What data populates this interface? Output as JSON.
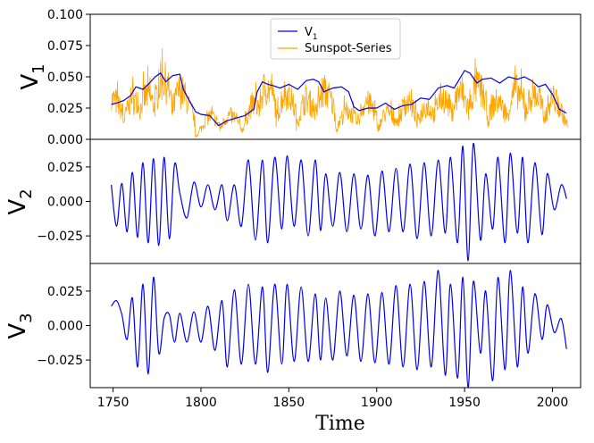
{
  "figure": {
    "xlabel": "Time",
    "x_ticks": [
      1750,
      1800,
      1850,
      1900,
      1950,
      2000
    ]
  },
  "legend": {
    "v1_label": "V",
    "v1_sub": "1",
    "sunspot_label": "Sunspot-Series"
  },
  "colors": {
    "v_line": "#0000ee",
    "sunspot": "#ffa500"
  },
  "chart_data": [
    {
      "type": "line",
      "panel": "v1",
      "ylabel": "V",
      "ylabel_sub": "1",
      "xlim": [
        1737,
        2016
      ],
      "ylim": [
        0,
        0.1
      ],
      "y_ticks": [
        "0.000",
        "0.025",
        "0.050",
        "0.075",
        "0.100"
      ],
      "y_tick_values": [
        0,
        0.025,
        0.05,
        0.075,
        0.1
      ],
      "series": [
        {
          "name": "V1",
          "color": "#0000ee",
          "x": [
            1749,
            1752,
            1756,
            1760,
            1763,
            1767,
            1770,
            1774,
            1777,
            1780,
            1784,
            1788,
            1790,
            1793,
            1797,
            1800,
            1805,
            1810,
            1815,
            1820,
            1825,
            1830,
            1832,
            1835,
            1838,
            1841,
            1845,
            1850,
            1855,
            1860,
            1864,
            1867,
            1870,
            1875,
            1880,
            1884,
            1887,
            1890,
            1895,
            1900,
            1905,
            1910,
            1915,
            1920,
            1925,
            1930,
            1935,
            1940,
            1944,
            1947,
            1950,
            1953,
            1957,
            1960,
            1965,
            1970,
            1975,
            1980,
            1984,
            1988,
            1992,
            1996,
            2000,
            2004,
            2008
          ],
          "y": [
            0.028,
            0.029,
            0.031,
            0.035,
            0.042,
            0.04,
            0.044,
            0.05,
            0.053,
            0.046,
            0.051,
            0.052,
            0.04,
            0.032,
            0.022,
            0.02,
            0.019,
            0.011,
            0.015,
            0.017,
            0.019,
            0.024,
            0.038,
            0.046,
            0.044,
            0.043,
            0.041,
            0.044,
            0.04,
            0.047,
            0.048,
            0.046,
            0.038,
            0.041,
            0.042,
            0.038,
            0.026,
            0.023,
            0.025,
            0.025,
            0.029,
            0.024,
            0.027,
            0.028,
            0.033,
            0.032,
            0.041,
            0.043,
            0.041,
            0.048,
            0.055,
            0.053,
            0.045,
            0.048,
            0.049,
            0.045,
            0.05,
            0.048,
            0.05,
            0.047,
            0.042,
            0.044,
            0.036,
            0.024,
            0.021
          ]
        },
        {
          "name": "Sunspot-Series",
          "color": "#ffa500",
          "cycle_max_years": [
            1750,
            1761,
            1769,
            1778,
            1788,
            1805,
            1816,
            1830,
            1837,
            1848,
            1860,
            1870,
            1883,
            1894,
            1906,
            1917,
            1928,
            1937,
            1947,
            1957,
            1968,
            1979,
            1989,
            2000
          ],
          "cycle_peaks": [
            0.043,
            0.043,
            0.048,
            0.065,
            0.053,
            0.025,
            0.026,
            0.039,
            0.057,
            0.05,
            0.043,
            0.053,
            0.031,
            0.04,
            0.029,
            0.04,
            0.036,
            0.046,
            0.05,
            0.058,
            0.041,
            0.053,
            0.05,
            0.044
          ]
        }
      ]
    },
    {
      "type": "line",
      "panel": "v2",
      "ylabel": "V",
      "ylabel_sub": "2",
      "xlim": [
        1737,
        2016
      ],
      "ylim": [
        -0.045,
        0.045
      ],
      "y_ticks": [
        "0.025",
        "0.000",
        "−0.025"
      ],
      "y_tick_values": [
        0.025,
        0,
        -0.025
      ],
      "series": [
        {
          "name": "V2",
          "color": "#0000ee",
          "x": [
            1749,
            1752,
            1755,
            1758,
            1761,
            1764,
            1767,
            1770,
            1773,
            1776,
            1779,
            1782,
            1785,
            1788,
            1792,
            1796,
            1800,
            1804,
            1808,
            1812,
            1815,
            1819,
            1823,
            1827,
            1831,
            1835,
            1838,
            1842,
            1846,
            1849,
            1853,
            1857,
            1861,
            1865,
            1868,
            1871,
            1875,
            1879,
            1883,
            1887,
            1891,
            1895,
            1899,
            1903,
            1907,
            1911,
            1915,
            1919,
            1923,
            1927,
            1931,
            1935,
            1939,
            1942,
            1946,
            1949,
            1952,
            1955,
            1959,
            1962,
            1966,
            1969,
            1973,
            1976,
            1980,
            1983,
            1986,
            1990,
            1994,
            1997,
            2001,
            2005,
            2008
          ],
          "y": [
            0.012,
            -0.018,
            0.013,
            -0.022,
            0.021,
            -0.026,
            0.028,
            -0.03,
            0.031,
            -0.032,
            0.032,
            -0.027,
            0.027,
            0.006,
            -0.012,
            0.014,
            -0.004,
            0.012,
            -0.006,
            0.012,
            -0.014,
            0.012,
            -0.018,
            0.03,
            -0.028,
            0.03,
            -0.03,
            0.032,
            -0.02,
            0.033,
            -0.018,
            0.03,
            -0.025,
            0.03,
            -0.021,
            0.02,
            -0.018,
            0.021,
            -0.022,
            0.02,
            -0.02,
            0.019,
            -0.025,
            0.022,
            -0.022,
            0.024,
            -0.022,
            0.027,
            -0.027,
            0.028,
            -0.025,
            0.03,
            -0.023,
            0.032,
            -0.03,
            0.04,
            -0.043,
            0.042,
            -0.028,
            0.02,
            -0.02,
            0.032,
            -0.03,
            0.035,
            -0.023,
            0.032,
            -0.03,
            0.028,
            -0.024,
            0.02,
            -0.006,
            0.012,
            0.002
          ]
        }
      ]
    },
    {
      "type": "line",
      "panel": "v3",
      "ylabel": "V",
      "ylabel_sub": "3",
      "xlim": [
        1737,
        2016
      ],
      "ylim": [
        -0.045,
        0.045
      ],
      "y_ticks": [
        "0.025",
        "0.000",
        "−0.025"
      ],
      "y_tick_values": [
        0.025,
        0,
        -0.025
      ],
      "series": [
        {
          "name": "V3",
          "color": "#0000ee",
          "x": [
            1749,
            1752,
            1755,
            1758,
            1761,
            1764,
            1767,
            1770,
            1773,
            1776,
            1779,
            1782,
            1785,
            1788,
            1792,
            1796,
            1800,
            1804,
            1808,
            1812,
            1815,
            1819,
            1823,
            1827,
            1831,
            1835,
            1838,
            1842,
            1846,
            1849,
            1853,
            1857,
            1861,
            1865,
            1868,
            1871,
            1875,
            1879,
            1883,
            1887,
            1891,
            1895,
            1899,
            1903,
            1907,
            1911,
            1915,
            1919,
            1923,
            1927,
            1931,
            1935,
            1939,
            1942,
            1946,
            1949,
            1952,
            1955,
            1959,
            1962,
            1966,
            1969,
            1973,
            1976,
            1980,
            1983,
            1986,
            1990,
            1994,
            1997,
            2001,
            2005,
            2008
          ],
          "y": [
            0.014,
            0.018,
            0.008,
            -0.01,
            0.02,
            -0.03,
            0.03,
            -0.035,
            0.035,
            -0.02,
            0.005,
            0.008,
            -0.012,
            0.009,
            -0.012,
            0.01,
            -0.012,
            0.014,
            -0.018,
            0.018,
            -0.03,
            0.026,
            -0.028,
            0.03,
            -0.028,
            0.028,
            -0.034,
            0.03,
            -0.028,
            0.03,
            -0.026,
            0.028,
            -0.026,
            0.023,
            -0.025,
            0.02,
            -0.025,
            0.025,
            -0.022,
            0.022,
            -0.026,
            0.023,
            -0.027,
            0.024,
            -0.028,
            0.029,
            -0.03,
            0.03,
            -0.032,
            0.032,
            -0.03,
            0.04,
            -0.036,
            0.03,
            -0.038,
            0.035,
            -0.045,
            0.032,
            -0.02,
            0.025,
            -0.04,
            0.035,
            -0.032,
            0.04,
            -0.03,
            0.028,
            -0.02,
            0.023,
            -0.01,
            0.015,
            -0.005,
            0.005,
            -0.017
          ]
        }
      ]
    }
  ]
}
